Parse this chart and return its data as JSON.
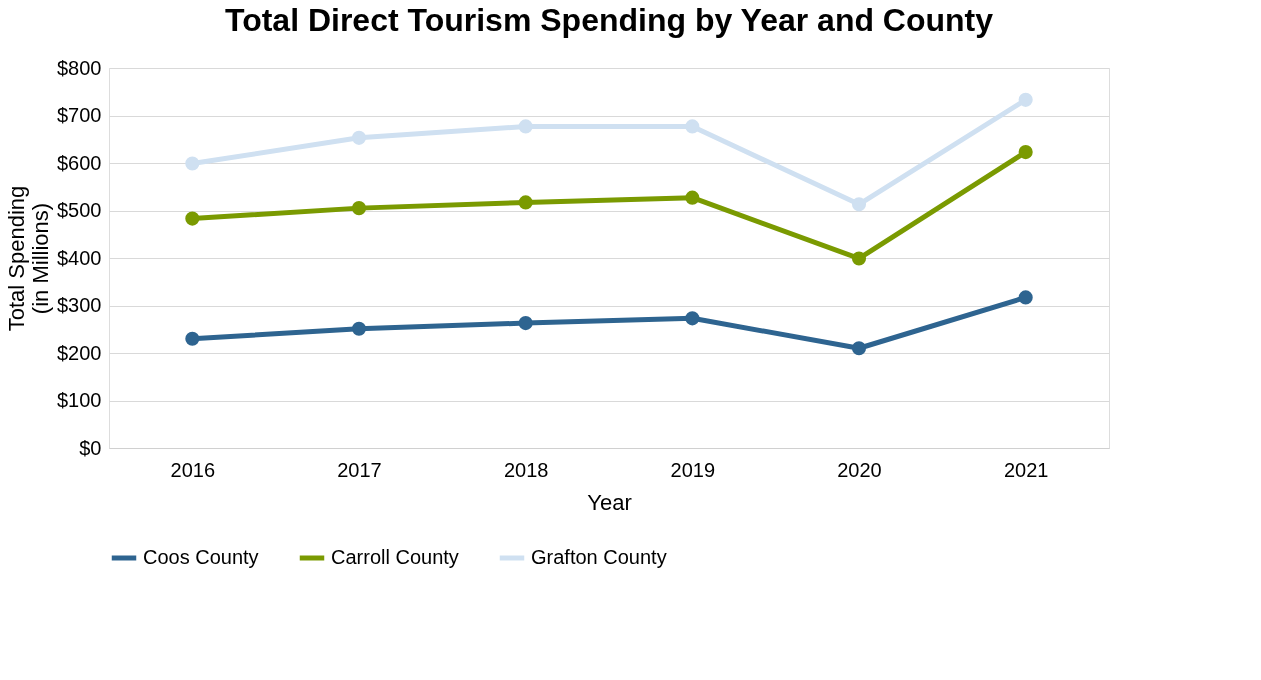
{
  "chart_data": {
    "type": "line",
    "title": "Total Direct Tourism Spending by Year and County",
    "xlabel": "Year",
    "ylabel": "Total Spending\n(in Millions)",
    "categories": [
      "2016",
      "2017",
      "2018",
      "2019",
      "2020",
      "2021"
    ],
    "series": [
      {
        "name": "Coos County",
        "color": "#2e6490",
        "values": [
          230,
          251,
          263,
          273,
          210,
          317
        ]
      },
      {
        "name": "Carroll County",
        "color": "#7a9a01",
        "values": [
          483,
          505,
          517,
          527,
          399,
          623
        ]
      },
      {
        "name": "Grafton County",
        "color": "#cfe0f1",
        "values": [
          599,
          653,
          677,
          677,
          513,
          733
        ]
      }
    ],
    "ylim": [
      0,
      800
    ],
    "yticks": [
      {
        "value": 0,
        "label": "$0"
      },
      {
        "value": 100,
        "label": "$100"
      },
      {
        "value": 200,
        "label": "$200"
      },
      {
        "value": 300,
        "label": "$300"
      },
      {
        "value": 400,
        "label": "$400"
      },
      {
        "value": 500,
        "label": "$500"
      },
      {
        "value": 600,
        "label": "$600"
      },
      {
        "value": 700,
        "label": "$700"
      },
      {
        "value": 800,
        "label": "$800"
      }
    ],
    "grid": "y",
    "legend": "bottom",
    "marker": "circle",
    "line_style": "solid"
  }
}
